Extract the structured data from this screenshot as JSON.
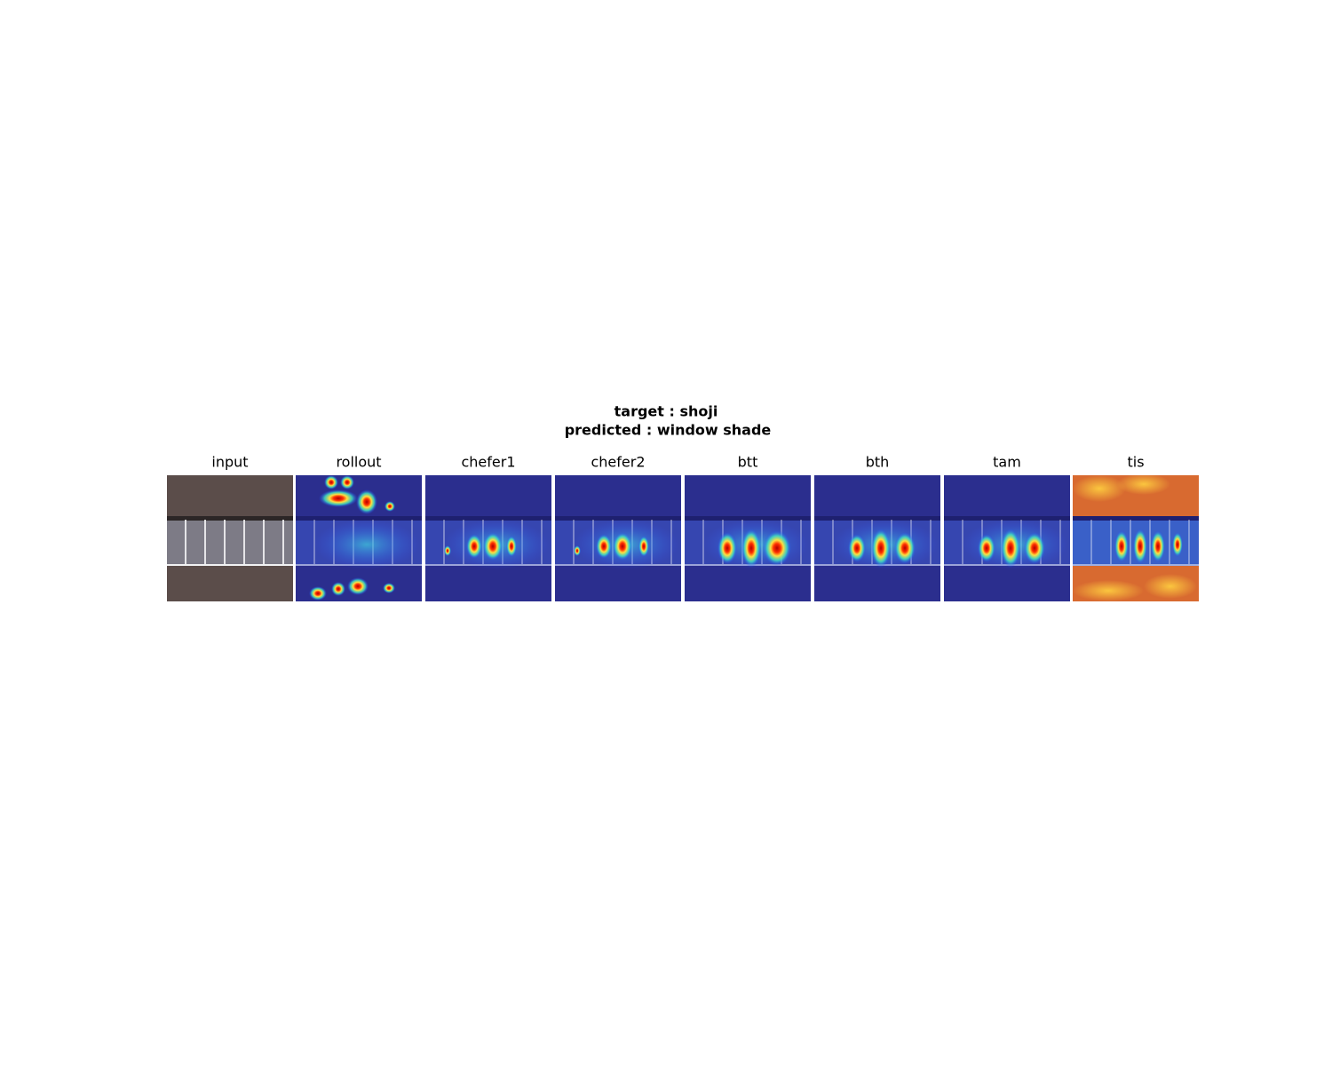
{
  "title": {
    "line1": "target : shoji",
    "line2": "predicted : window shade"
  },
  "panels": [
    {
      "label": "input"
    },
    {
      "label": "rollout"
    },
    {
      "label": "chefer1"
    },
    {
      "label": "chefer2"
    },
    {
      "label": "btt"
    },
    {
      "label": "bth"
    },
    {
      "label": "tam"
    },
    {
      "label": "tis"
    }
  ]
}
